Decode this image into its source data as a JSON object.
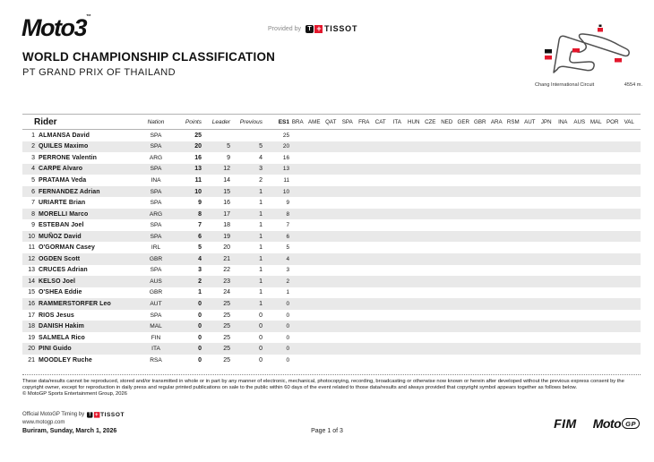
{
  "header": {
    "logo": "Moto3",
    "logo_tm": "™",
    "provided_by": "Provided by",
    "tissot_t": "T",
    "tissot_plus": "+",
    "tissot_name": "TISSOT",
    "title": "WORLD CHAMPIONSHIP CLASSIFICATION",
    "subtitle": "PT GRAND PRIX OF THAILAND",
    "circuit_name": "Chang International Circuit",
    "circuit_length": "4554 m."
  },
  "table": {
    "headers": {
      "rider": "Rider",
      "nation": "Nation",
      "points": "Points",
      "leader": "Leader",
      "previous": "Previous",
      "es1": "ES1"
    },
    "race_columns": [
      "BRA",
      "AME",
      "QAT",
      "SPA",
      "FRA",
      "CAT",
      "ITA",
      "HUN",
      "CZE",
      "NED",
      "GER",
      "GBR",
      "ARA",
      "RSM",
      "AUT",
      "JPN",
      "INA",
      "AUS",
      "MAL",
      "POR",
      "VAL"
    ],
    "rows": [
      {
        "pos": "1",
        "name": "ALMANSA David",
        "nation": "SPA",
        "points": "25",
        "leader": "",
        "previous": "",
        "es1": "25"
      },
      {
        "pos": "2",
        "name": "QUILES Maximo",
        "nation": "SPA",
        "points": "20",
        "leader": "5",
        "previous": "5",
        "es1": "20"
      },
      {
        "pos": "3",
        "name": "PERRONE Valentin",
        "nation": "ARG",
        "points": "16",
        "leader": "9",
        "previous": "4",
        "es1": "16"
      },
      {
        "pos": "4",
        "name": "CARPE Alvaro",
        "nation": "SPA",
        "points": "13",
        "leader": "12",
        "previous": "3",
        "es1": "13"
      },
      {
        "pos": "5",
        "name": "PRATAMA Veda",
        "nation": "INA",
        "points": "11",
        "leader": "14",
        "previous": "2",
        "es1": "11"
      },
      {
        "pos": "6",
        "name": "FERNANDEZ Adrian",
        "nation": "SPA",
        "points": "10",
        "leader": "15",
        "previous": "1",
        "es1": "10"
      },
      {
        "pos": "7",
        "name": "URIARTE Brian",
        "nation": "SPA",
        "points": "9",
        "leader": "16",
        "previous": "1",
        "es1": "9"
      },
      {
        "pos": "8",
        "name": "MORELLI Marco",
        "nation": "ARG",
        "points": "8",
        "leader": "17",
        "previous": "1",
        "es1": "8"
      },
      {
        "pos": "9",
        "name": "ESTEBAN Joel",
        "nation": "SPA",
        "points": "7",
        "leader": "18",
        "previous": "1",
        "es1": "7"
      },
      {
        "pos": "10",
        "name": "MUÑOZ David",
        "nation": "SPA",
        "points": "6",
        "leader": "19",
        "previous": "1",
        "es1": "6"
      },
      {
        "pos": "11",
        "name": "O'GORMAN Casey",
        "nation": "IRL",
        "points": "5",
        "leader": "20",
        "previous": "1",
        "es1": "5"
      },
      {
        "pos": "12",
        "name": "OGDEN Scott",
        "nation": "GBR",
        "points": "4",
        "leader": "21",
        "previous": "1",
        "es1": "4"
      },
      {
        "pos": "13",
        "name": "CRUCES Adrian",
        "nation": "SPA",
        "points": "3",
        "leader": "22",
        "previous": "1",
        "es1": "3"
      },
      {
        "pos": "14",
        "name": "KELSO Joel",
        "nation": "AUS",
        "points": "2",
        "leader": "23",
        "previous": "1",
        "es1": "2"
      },
      {
        "pos": "15",
        "name": "O'SHEA Eddie",
        "nation": "GBR",
        "points": "1",
        "leader": "24",
        "previous": "1",
        "es1": "1"
      },
      {
        "pos": "16",
        "name": "RAMMERSTORFER Leo",
        "nation": "AUT",
        "points": "0",
        "leader": "25",
        "previous": "1",
        "es1": "0"
      },
      {
        "pos": "17",
        "name": "RIOS Jesus",
        "nation": "SPA",
        "points": "0",
        "leader": "25",
        "previous": "0",
        "es1": "0"
      },
      {
        "pos": "18",
        "name": "DANISH Hakim",
        "nation": "MAL",
        "points": "0",
        "leader": "25",
        "previous": "0",
        "es1": "0"
      },
      {
        "pos": "19",
        "name": "SALMELA Rico",
        "nation": "FIN",
        "points": "0",
        "leader": "25",
        "previous": "0",
        "es1": "0"
      },
      {
        "pos": "20",
        "name": "PINI Guido",
        "nation": "ITA",
        "points": "0",
        "leader": "25",
        "previous": "0",
        "es1": "0"
      },
      {
        "pos": "21",
        "name": "MOODLEY Ruche",
        "nation": "RSA",
        "points": "0",
        "leader": "25",
        "previous": "0",
        "es1": "0"
      }
    ]
  },
  "footer": {
    "disclaimer_line1": "These data/results cannot be reproduced, stored and/or transmitted in whole or in part by any manner of electronic, mechanical, photocopying, recording, broadcasting or otherwise now known or herein after developed without the previous express consent by the",
    "disclaimer_line2": "copyright owner, except for reproduction in daily press and regular printed publications on sale to the public within 60 days of the event related to those data/results and always provided that copyright symbol appears together as follows below.",
    "copyright": "© MotoGP Sports Entertainment Group, 2026",
    "timing_by": "Official MotoGP Timing by",
    "tissot_name": "TISSOT",
    "website": "www.motogp.com",
    "location_date": "Buriram, Sunday, March 1, 2026",
    "page": "Page 1 of 3",
    "fim": "FIM",
    "motogp_moto": "Moto",
    "motogp_gp": "GP"
  },
  "colors": {
    "brand_red": "#e3172c",
    "row_alt": "#e9e9e9",
    "track_gray": "#4f4f4f"
  }
}
